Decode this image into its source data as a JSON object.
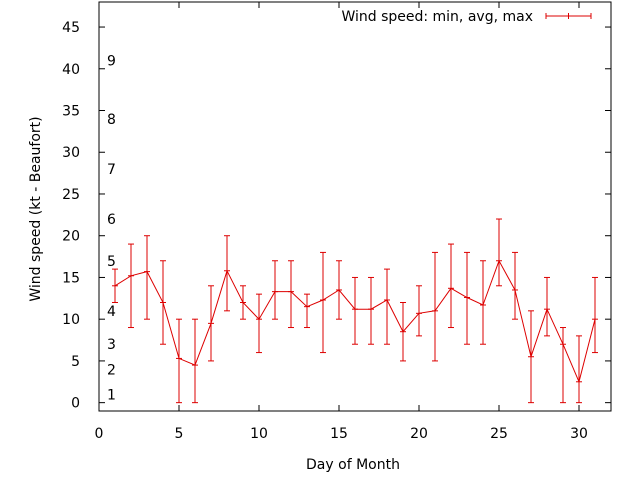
{
  "colors": {
    "series": "#dd0000",
    "axis": "#000000",
    "background": "#ffffff"
  },
  "chart_data": {
    "type": "line",
    "xlabel": "Day of Month",
    "ylabel": "Wind speed (kt - Beaufort)",
    "xlim": [
      0,
      32
    ],
    "ylim": [
      -1,
      48
    ],
    "grid": false,
    "legend_placement": "top-right",
    "x_ticks": [
      "0",
      "5",
      "10",
      "15",
      "20",
      "25",
      "30"
    ],
    "y_ticks": [
      "0",
      "5",
      "10",
      "15",
      "20",
      "25",
      "30",
      "35",
      "40",
      "45"
    ],
    "beaufort_labels": [
      {
        "label": "1",
        "y": 1
      },
      {
        "label": "2",
        "y": 4
      },
      {
        "label": "3",
        "y": 7
      },
      {
        "label": "4",
        "y": 11
      },
      {
        "label": "5",
        "y": 17
      },
      {
        "label": "6",
        "y": 22
      },
      {
        "label": "7",
        "y": 28
      },
      {
        "label": "8",
        "y": 34
      },
      {
        "label": "9",
        "y": 41
      }
    ],
    "series": [
      {
        "name": "Wind speed: min, avg, max",
        "points": [
          {
            "x": 1,
            "avg": 14.0,
            "min": 12,
            "max": 16
          },
          {
            "x": 2,
            "avg": 15.2,
            "min": 9,
            "max": 19
          },
          {
            "x": 3,
            "avg": 15.7,
            "min": 10,
            "max": 20
          },
          {
            "x": 4,
            "avg": 12.0,
            "min": 7,
            "max": 17
          },
          {
            "x": 5,
            "avg": 5.3,
            "min": 0,
            "max": 10
          },
          {
            "x": 6,
            "avg": 4.5,
            "min": 0,
            "max": 10
          },
          {
            "x": 7,
            "avg": 9.5,
            "min": 5,
            "max": 14
          },
          {
            "x": 8,
            "avg": 15.8,
            "min": 11,
            "max": 20
          },
          {
            "x": 9,
            "avg": 12.0,
            "min": 10,
            "max": 14
          },
          {
            "x": 10,
            "avg": 10.0,
            "min": 6,
            "max": 13
          },
          {
            "x": 11,
            "avg": 13.3,
            "min": 10,
            "max": 17
          },
          {
            "x": 12,
            "avg": 13.3,
            "min": 9,
            "max": 17
          },
          {
            "x": 13,
            "avg": 11.5,
            "min": 9,
            "max": 13
          },
          {
            "x": 14,
            "avg": 12.3,
            "min": 6,
            "max": 18
          },
          {
            "x": 15,
            "avg": 13.5,
            "min": 10,
            "max": 17
          },
          {
            "x": 16,
            "avg": 11.2,
            "min": 7,
            "max": 15
          },
          {
            "x": 17,
            "avg": 11.2,
            "min": 7,
            "max": 15
          },
          {
            "x": 18,
            "avg": 12.3,
            "min": 7,
            "max": 16
          },
          {
            "x": 19,
            "avg": 8.5,
            "min": 5,
            "max": 12
          },
          {
            "x": 20,
            "avg": 10.7,
            "min": 8,
            "max": 14
          },
          {
            "x": 21,
            "avg": 11.0,
            "min": 5,
            "max": 18
          },
          {
            "x": 22,
            "avg": 13.7,
            "min": 9,
            "max": 19
          },
          {
            "x": 23,
            "avg": 12.6,
            "min": 7,
            "max": 18
          },
          {
            "x": 24,
            "avg": 11.7,
            "min": 7,
            "max": 17
          },
          {
            "x": 25,
            "avg": 17.0,
            "min": 14,
            "max": 22
          },
          {
            "x": 26,
            "avg": 13.5,
            "min": 10,
            "max": 18
          },
          {
            "x": 27,
            "avg": 5.5,
            "min": 0,
            "max": 11
          },
          {
            "x": 28,
            "avg": 11.2,
            "min": 8,
            "max": 15
          },
          {
            "x": 29,
            "avg": 7.0,
            "min": 0,
            "max": 9
          },
          {
            "x": 30,
            "avg": 2.5,
            "min": 0,
            "max": 8
          },
          {
            "x": 31,
            "avg": 10.0,
            "min": 6,
            "max": 15
          }
        ]
      }
    ]
  }
}
